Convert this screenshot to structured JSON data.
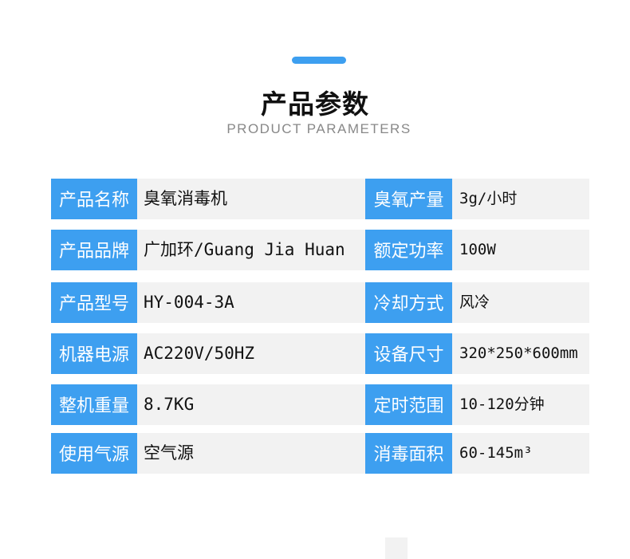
{
  "header": {
    "title": "产品参数",
    "subtitle": "PRODUCT PARAMETERS",
    "accent": "#3d9ff0"
  },
  "rows": [
    {
      "l1": "产品名称",
      "v1": "臭氧消毒机",
      "l2": "臭氧产量",
      "v2": "3g/小时"
    },
    {
      "l1": "产品品牌",
      "v1": "广加环/Guang Jia Huan",
      "l2": "额定功率",
      "v2": "100W"
    },
    {
      "l1": "产品型号",
      "v1": "HY-004-3A",
      "l2": "冷却方式",
      "v2": "风冷"
    },
    {
      "l1": "机器电源",
      "v1": "AC220V/50HZ",
      "l2": "设备尺寸",
      "v2": "320*250*600mm"
    },
    {
      "l1": "整机重量",
      "v1": "8.7KG",
      "l2": "定时范围",
      "v2": "10-120分钟"
    },
    {
      "l1": "使用气源",
      "v1": "空气源",
      "l2": "消毒面积",
      "v2": "60-145m³"
    }
  ]
}
